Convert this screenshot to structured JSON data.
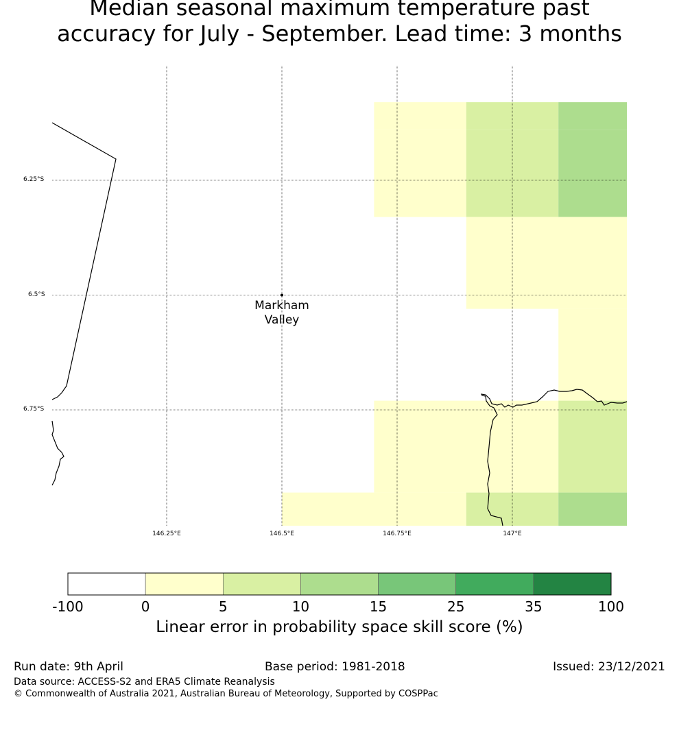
{
  "title": "Median seasonal maximum temperature past\naccuracy for July - September. Lead time: 3 months",
  "map": {
    "lat_labels": [
      "6.25°S",
      "6.5°S",
      "6.75°S"
    ],
    "lon_labels": [
      "146.25°E",
      "146.5°E",
      "146.75°E",
      "147°E"
    ],
    "place": {
      "name": "Markham\nValley",
      "lon": 146.5,
      "lat": -6.5
    },
    "cells_note": "grid cells coloured by skill-score class index into colorbar.colors",
    "cells": [
      {
        "lon_range": [
          146.7,
          146.9
        ],
        "lat_range": [
          -6.08,
          -6.14
        ],
        "class": 1
      },
      {
        "lon_range": [
          146.9,
          147.1
        ],
        "lat_range": [
          -6.08,
          -6.14
        ],
        "class": 2
      },
      {
        "lon_range": [
          147.1,
          147.25
        ],
        "lat_range": [
          -6.08,
          -6.14
        ],
        "class": 3
      },
      {
        "lon_range": [
          146.7,
          146.9
        ],
        "lat_range": [
          -6.14,
          -6.33
        ],
        "class": 1
      },
      {
        "lon_range": [
          146.9,
          147.1
        ],
        "lat_range": [
          -6.14,
          -6.33
        ],
        "class": 2
      },
      {
        "lon_range": [
          147.1,
          147.25
        ],
        "lat_range": [
          -6.14,
          -6.33
        ],
        "class": 3
      },
      {
        "lon_range": [
          146.9,
          147.25
        ],
        "lat_range": [
          -6.33,
          -6.53
        ],
        "class": 1
      },
      {
        "lon_range": [
          147.1,
          147.25
        ],
        "lat_range": [
          -6.53,
          -6.73
        ],
        "class": 1
      },
      {
        "lon_range": [
          146.7,
          147.1
        ],
        "lat_range": [
          -6.73,
          -6.93
        ],
        "class": 1
      },
      {
        "lon_range": [
          147.1,
          147.25
        ],
        "lat_range": [
          -6.73,
          -6.93
        ],
        "class": 2
      },
      {
        "lon_range": [
          146.5,
          146.9
        ],
        "lat_range": [
          -6.93,
          -7.13
        ],
        "class": 1
      },
      {
        "lon_range": [
          146.9,
          147.1
        ],
        "lat_range": [
          -6.93,
          -7.13
        ],
        "class": 2
      },
      {
        "lon_range": [
          147.1,
          147.25
        ],
        "lat_range": [
          -6.93,
          -7.13
        ],
        "class": 3
      }
    ]
  },
  "colorbar": {
    "ticks": [
      "-100",
      "0",
      "5",
      "10",
      "15",
      "25",
      "35",
      "100"
    ],
    "colors": [
      "#ffffff",
      "#ffffcc",
      "#d9f0a3",
      "#addd8e",
      "#78c679",
      "#41ab5d",
      "#238443"
    ],
    "label": "Linear error in probability space skill score (%)"
  },
  "footer": {
    "run_date": "Run date: 9th April",
    "base_period": "Base period: 1981-2018",
    "issued": "Issued: 23/12/2021",
    "data_source": "Data source: ACCESS-S2 and ERA5 Climate Reanalysis",
    "copyright": "© Commonwealth of Australia 2021, Australian Bureau of Meteorology, Supported by COSPPac"
  }
}
